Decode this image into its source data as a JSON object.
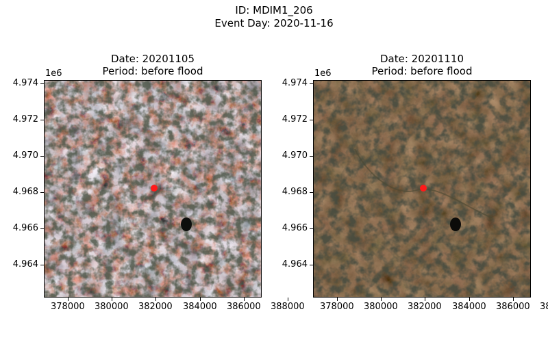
{
  "suptitle": {
    "line1": "ID: MDIM1_206",
    "line2": "Event Day: 2020-11-16"
  },
  "panels": [
    {
      "title_line1": "Date: 20201105",
      "title_line2": "Period: before flood",
      "style": "bright"
    },
    {
      "title_line1": "Date: 20201110",
      "title_line2": "Period: before flood",
      "style": "dark"
    }
  ],
  "y_axis": {
    "offset_label": "1e6",
    "ticks": [
      "4.974",
      "4.972",
      "4.970",
      "4.968",
      "4.966",
      "4.964"
    ]
  },
  "x_axis": {
    "ticks": [
      "378000",
      "380000",
      "382000",
      "384000",
      "386000",
      "388000"
    ]
  },
  "marker": {
    "x": 382700,
    "y": 4.9682,
    "color": "#ff1a1a"
  }
}
